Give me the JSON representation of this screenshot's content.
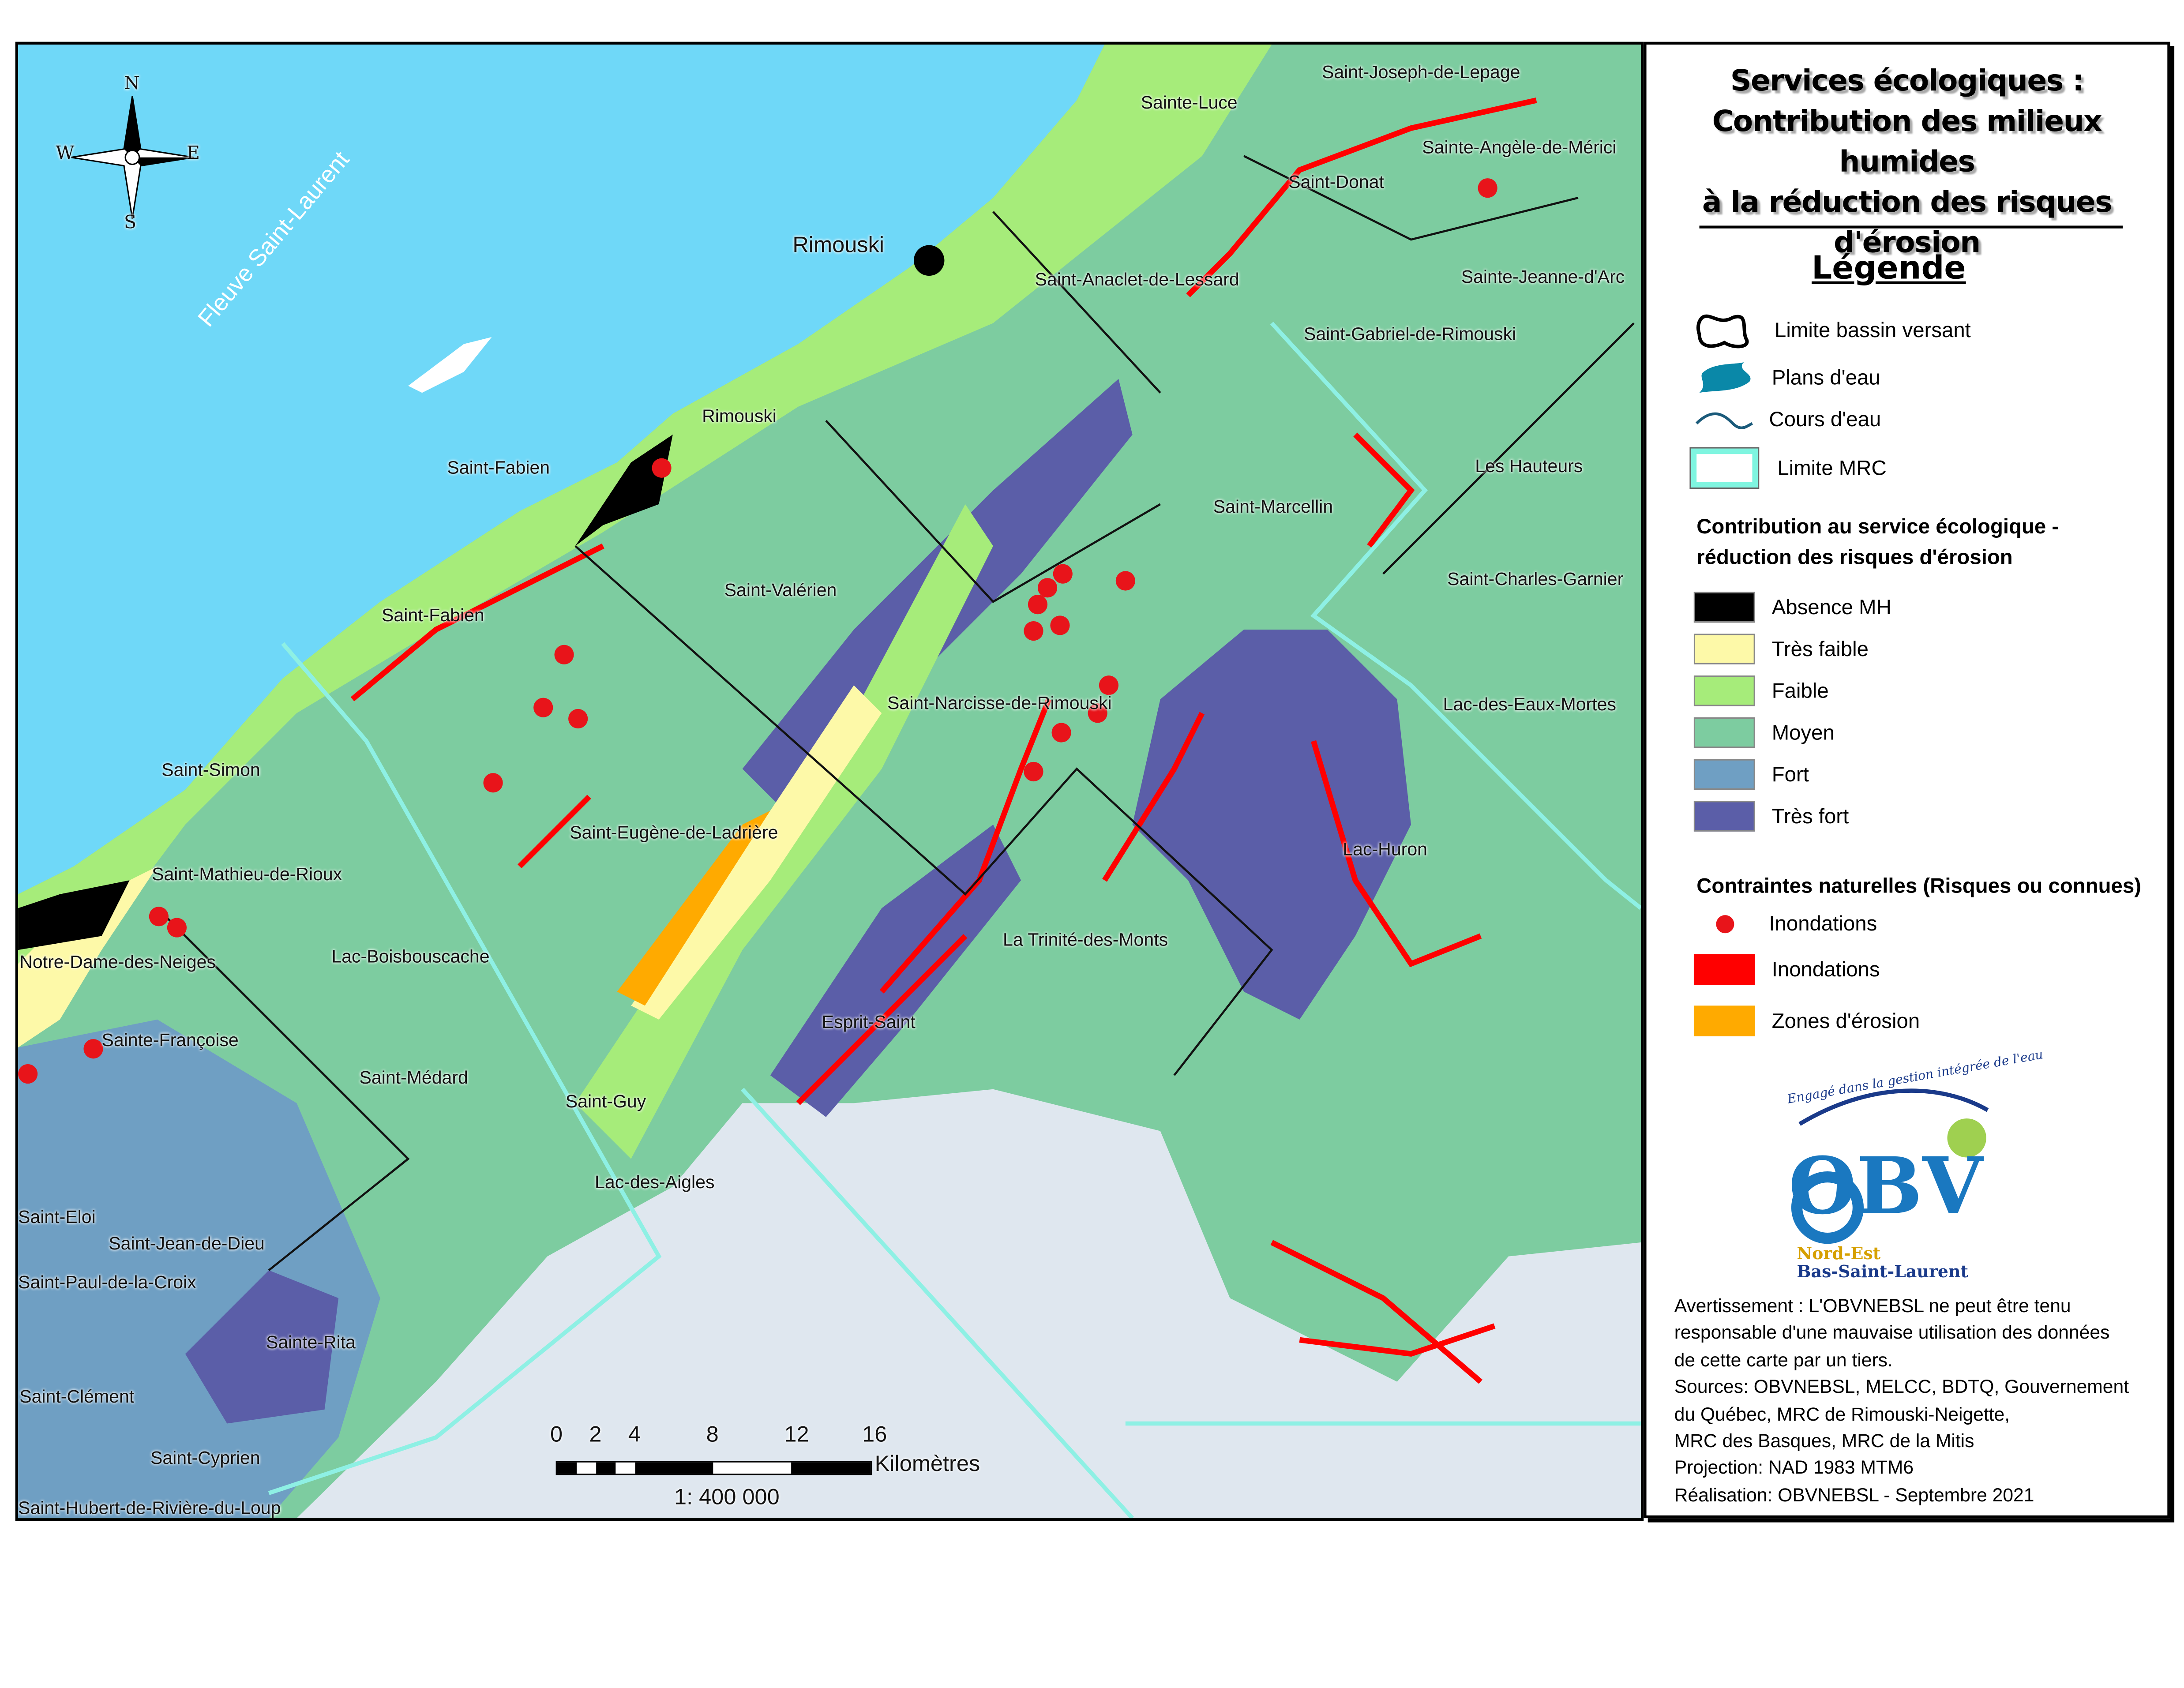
{
  "title_lines": [
    "Services écologiques :",
    "Contribution des milieux humides",
    "à la réduction des risques",
    "d'érosion"
  ],
  "legend": {
    "heading": "Légende",
    "symbols": [
      {
        "label": "Limite bassin versant",
        "icon": "watershed-outline-icon"
      },
      {
        "label": "Plans d'eau",
        "icon": "water-body-icon",
        "color": "#0a88a8"
      },
      {
        "label": "Cours d'eau",
        "icon": "stream-line-icon",
        "color": "#1a5a7a"
      },
      {
        "label": "Limite MRC",
        "icon": "mrc-boundary-icon",
        "color": "#7ff5e0"
      }
    ],
    "contribution_title": [
      "Contribution au service écologique -",
      "réduction des risques d'érosion"
    ],
    "classes": [
      {
        "label": "Absence MH",
        "color": "#000000"
      },
      {
        "label": "Très faible",
        "color": "#fdf9a8"
      },
      {
        "label": "Faible",
        "color": "#a6ec7a"
      },
      {
        "label": "Moyen",
        "color": "#7dcca0"
      },
      {
        "label": "Fort",
        "color": "#6f9fc3"
      },
      {
        "label": "Très fort",
        "color": "#5b5ea8"
      }
    ],
    "constraints_title": "Contraintes naturelles (Risques ou connues)",
    "constraints": [
      {
        "label": "Inondations",
        "type": "point",
        "color": "#e8141a"
      },
      {
        "label": "Inondations",
        "type": "area",
        "color": "#ff0000"
      },
      {
        "label": "Zones d'érosion",
        "type": "area",
        "color": "#ffaa00"
      }
    ]
  },
  "logo": {
    "tagline": "Engagé dans la gestion intégrée de l'eau",
    "name": "OBV",
    "line1": "Nord-Est",
    "line2": "Bas-Saint-Laurent"
  },
  "disclaimer": [
    "Avertissement : L'OBVNEBSL ne peut être tenu",
    "responsable d'une mauvaise utilisation des données",
    "de cette carte par un tiers.",
    "Sources: OBVNEBSL, MELCC, BDTQ, Gouvernement",
    "du Québec, MRC de Rimouski-Neigette,",
    "MRC des Basques, MRC de la Mitis",
    "Projection: NAD 1983 MTM6",
    "Réalisation: OBVNEBSL - Septembre 2021"
  ],
  "compass": {
    "n": "N",
    "s": "S",
    "e": "E",
    "w": "W"
  },
  "water_label": "Fleuve Saint-Laurent",
  "city": "Rimouski",
  "places": [
    "Saint-Joseph-de-Lepage",
    "Sainte-Luce",
    "Sainte-Angèle-de-Mérici",
    "Saint-Donat",
    "Saint-Anaclet-de-Lessard",
    "Sainte-Jeanne-d'Arc",
    "Saint-Gabriel-de-Rimouski",
    "Rimouski",
    "Saint-Fabien",
    "Les Hauteurs",
    "Saint-Marcellin",
    "Saint-Charles-Garnier",
    "Saint-Valérien",
    "Saint-Fabien",
    "Saint-Narcisse-de-Rimouski",
    "Lac-des-Eaux-Mortes",
    "Saint-Simon",
    "Saint-Eugène-de-Ladrière",
    "Lac-Huron",
    "Saint-Mathieu-de-Rioux",
    "La Trinité-des-Monts",
    "Lac-Boisbouscache",
    "Notre-Dame-des-Neiges",
    "Esprit-Saint",
    "Sainte-Françoise",
    "Saint-Médard",
    "Saint-Guy",
    "Lac-des-Aigles",
    "Saint-Eloi",
    "Saint-Jean-de-Dieu",
    "Saint-Paul-de-la-Croix",
    "Sainte-Rita",
    "Saint-Clément",
    "Saint-Cyprien",
    "Saint-Hubert-de-Rivière-du-Loup"
  ],
  "scalebar": {
    "ticks": [
      "0",
      "2",
      "4",
      "8",
      "12",
      "16"
    ],
    "unit": "Kilomètres",
    "ratio": "1: 400 000"
  }
}
